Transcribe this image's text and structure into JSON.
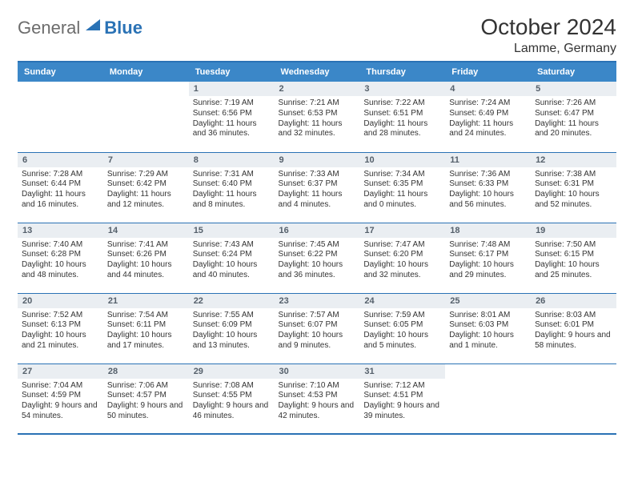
{
  "logo": {
    "general": "General",
    "blue": "Blue"
  },
  "header": {
    "month": "October 2024",
    "location": "Lamme, Germany"
  },
  "colors": {
    "accent": "#3b87c8",
    "rule": "#2a72b5",
    "dnum_bg": "#eaeef2",
    "dnum_fg": "#55606b",
    "text": "#333333",
    "logo_gray": "#6c6c6c"
  },
  "day_headers": [
    "Sunday",
    "Monday",
    "Tuesday",
    "Wednesday",
    "Thursday",
    "Friday",
    "Saturday"
  ],
  "weeks": [
    [
      null,
      null,
      {
        "n": "1",
        "rise": "7:19 AM",
        "set": "6:56 PM",
        "dl": "11 hours and 36 minutes."
      },
      {
        "n": "2",
        "rise": "7:21 AM",
        "set": "6:53 PM",
        "dl": "11 hours and 32 minutes."
      },
      {
        "n": "3",
        "rise": "7:22 AM",
        "set": "6:51 PM",
        "dl": "11 hours and 28 minutes."
      },
      {
        "n": "4",
        "rise": "7:24 AM",
        "set": "6:49 PM",
        "dl": "11 hours and 24 minutes."
      },
      {
        "n": "5",
        "rise": "7:26 AM",
        "set": "6:47 PM",
        "dl": "11 hours and 20 minutes."
      }
    ],
    [
      {
        "n": "6",
        "rise": "7:28 AM",
        "set": "6:44 PM",
        "dl": "11 hours and 16 minutes."
      },
      {
        "n": "7",
        "rise": "7:29 AM",
        "set": "6:42 PM",
        "dl": "11 hours and 12 minutes."
      },
      {
        "n": "8",
        "rise": "7:31 AM",
        "set": "6:40 PM",
        "dl": "11 hours and 8 minutes."
      },
      {
        "n": "9",
        "rise": "7:33 AM",
        "set": "6:37 PM",
        "dl": "11 hours and 4 minutes."
      },
      {
        "n": "10",
        "rise": "7:34 AM",
        "set": "6:35 PM",
        "dl": "11 hours and 0 minutes."
      },
      {
        "n": "11",
        "rise": "7:36 AM",
        "set": "6:33 PM",
        "dl": "10 hours and 56 minutes."
      },
      {
        "n": "12",
        "rise": "7:38 AM",
        "set": "6:31 PM",
        "dl": "10 hours and 52 minutes."
      }
    ],
    [
      {
        "n": "13",
        "rise": "7:40 AM",
        "set": "6:28 PM",
        "dl": "10 hours and 48 minutes."
      },
      {
        "n": "14",
        "rise": "7:41 AM",
        "set": "6:26 PM",
        "dl": "10 hours and 44 minutes."
      },
      {
        "n": "15",
        "rise": "7:43 AM",
        "set": "6:24 PM",
        "dl": "10 hours and 40 minutes."
      },
      {
        "n": "16",
        "rise": "7:45 AM",
        "set": "6:22 PM",
        "dl": "10 hours and 36 minutes."
      },
      {
        "n": "17",
        "rise": "7:47 AM",
        "set": "6:20 PM",
        "dl": "10 hours and 32 minutes."
      },
      {
        "n": "18",
        "rise": "7:48 AM",
        "set": "6:17 PM",
        "dl": "10 hours and 29 minutes."
      },
      {
        "n": "19",
        "rise": "7:50 AM",
        "set": "6:15 PM",
        "dl": "10 hours and 25 minutes."
      }
    ],
    [
      {
        "n": "20",
        "rise": "7:52 AM",
        "set": "6:13 PM",
        "dl": "10 hours and 21 minutes."
      },
      {
        "n": "21",
        "rise": "7:54 AM",
        "set": "6:11 PM",
        "dl": "10 hours and 17 minutes."
      },
      {
        "n": "22",
        "rise": "7:55 AM",
        "set": "6:09 PM",
        "dl": "10 hours and 13 minutes."
      },
      {
        "n": "23",
        "rise": "7:57 AM",
        "set": "6:07 PM",
        "dl": "10 hours and 9 minutes."
      },
      {
        "n": "24",
        "rise": "7:59 AM",
        "set": "6:05 PM",
        "dl": "10 hours and 5 minutes."
      },
      {
        "n": "25",
        "rise": "8:01 AM",
        "set": "6:03 PM",
        "dl": "10 hours and 1 minute."
      },
      {
        "n": "26",
        "rise": "8:03 AM",
        "set": "6:01 PM",
        "dl": "9 hours and 58 minutes."
      }
    ],
    [
      {
        "n": "27",
        "rise": "7:04 AM",
        "set": "4:59 PM",
        "dl": "9 hours and 54 minutes."
      },
      {
        "n": "28",
        "rise": "7:06 AM",
        "set": "4:57 PM",
        "dl": "9 hours and 50 minutes."
      },
      {
        "n": "29",
        "rise": "7:08 AM",
        "set": "4:55 PM",
        "dl": "9 hours and 46 minutes."
      },
      {
        "n": "30",
        "rise": "7:10 AM",
        "set": "4:53 PM",
        "dl": "9 hours and 42 minutes."
      },
      {
        "n": "31",
        "rise": "7:12 AM",
        "set": "4:51 PM",
        "dl": "9 hours and 39 minutes."
      },
      null,
      null
    ]
  ],
  "labels": {
    "sunrise": "Sunrise:",
    "sunset": "Sunset:",
    "daylight": "Daylight:"
  }
}
